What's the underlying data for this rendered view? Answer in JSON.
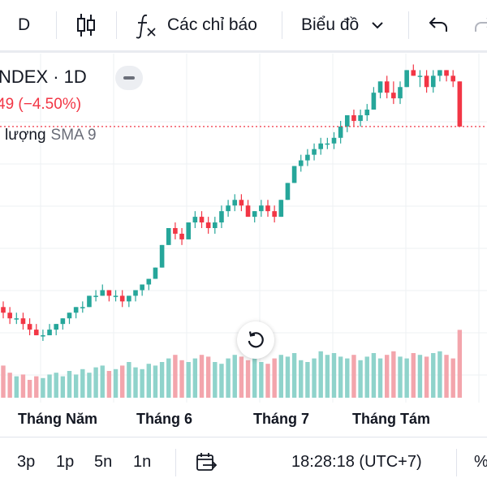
{
  "toolbar": {
    "interval": "D",
    "indicators_label": "Các chỉ báo",
    "chart_type_label": "Biểu đồ"
  },
  "legend": {
    "title": "NDEX · 1D",
    "change": "49 (−4.50%)",
    "volume_label": "lượng",
    "sma_label": "SMA 9"
  },
  "axis": {
    "months": [
      "Tháng Năm",
      "Tháng 6",
      "Tháng 7",
      "Tháng Tám"
    ]
  },
  "bottom": {
    "ranges": [
      "3p",
      "1p",
      "5n",
      "1n"
    ],
    "time": "18:28:18 (UTC+7)",
    "percent": "%"
  },
  "colors": {
    "up": "#26a69a",
    "down": "#f23645",
    "volume_up": "#8fd3cb",
    "volume_down": "#f3a5ac",
    "grid": "#eef0f3",
    "last_price_line": "#f23645"
  },
  "chart_data": {
    "type": "candlestick",
    "note_scale": "price axis not shown; values relative",
    "candles": [
      [
        46,
        47,
        44,
        45
      ],
      [
        45,
        46,
        43,
        44
      ],
      [
        44,
        45,
        43,
        44
      ],
      [
        44,
        45,
        42,
        43
      ],
      [
        43,
        44,
        41,
        42
      ],
      [
        42,
        43,
        41,
        41
      ],
      [
        41,
        42,
        40,
        41
      ],
      [
        41,
        43,
        41,
        42
      ],
      [
        42,
        43,
        41,
        43
      ],
      [
        43,
        44,
        42,
        44
      ],
      [
        44,
        45,
        43,
        45
      ],
      [
        45,
        46,
        44,
        46
      ],
      [
        46,
        47,
        45,
        46
      ],
      [
        46,
        48,
        46,
        48
      ],
      [
        48,
        49,
        47,
        48
      ],
      [
        48,
        50,
        48,
        49
      ],
      [
        49,
        49,
        47,
        48
      ],
      [
        48,
        49,
        47,
        48
      ],
      [
        48,
        49,
        46,
        47
      ],
      [
        47,
        48,
        46,
        48
      ],
      [
        48,
        49,
        47,
        49
      ],
      [
        49,
        50,
        48,
        50
      ],
      [
        50,
        51,
        49,
        51
      ],
      [
        51,
        53,
        51,
        53
      ],
      [
        53,
        57,
        53,
        57
      ],
      [
        57,
        60,
        57,
        60
      ],
      [
        60,
        61,
        58,
        59
      ],
      [
        59,
        60,
        57,
        58
      ],
      [
        58,
        61,
        58,
        61
      ],
      [
        61,
        63,
        60,
        62
      ],
      [
        62,
        63,
        60,
        61
      ],
      [
        61,
        62,
        59,
        60
      ],
      [
        60,
        62,
        59,
        61
      ],
      [
        61,
        64,
        60,
        63
      ],
      [
        63,
        65,
        62,
        64
      ],
      [
        64,
        66,
        63,
        65
      ],
      [
        65,
        66,
        63,
        64
      ],
      [
        64,
        65,
        62,
        62
      ],
      [
        62,
        63,
        61,
        63
      ],
      [
        63,
        65,
        62,
        64
      ],
      [
        64,
        65,
        62,
        63
      ],
      [
        63,
        64,
        61,
        62
      ],
      [
        62,
        65,
        62,
        65
      ],
      [
        65,
        68,
        65,
        68
      ],
      [
        68,
        71,
        68,
        71
      ],
      [
        71,
        73,
        70,
        72
      ],
      [
        72,
        74,
        71,
        73
      ],
      [
        73,
        75,
        72,
        74
      ],
      [
        74,
        76,
        73,
        75
      ],
      [
        75,
        76,
        74,
        75
      ],
      [
        75,
        77,
        74,
        76
      ],
      [
        76,
        79,
        75,
        78
      ],
      [
        78,
        80,
        77,
        80
      ],
      [
        80,
        81,
        78,
        79
      ],
      [
        79,
        81,
        78,
        80
      ],
      [
        80,
        82,
        79,
        81
      ],
      [
        81,
        85,
        81,
        84
      ],
      [
        84,
        86,
        83,
        86
      ],
      [
        86,
        87,
        83,
        84
      ],
      [
        84,
        86,
        82,
        83
      ],
      [
        83,
        86,
        82,
        85
      ],
      [
        85,
        88,
        85,
        88
      ],
      [
        88,
        89,
        87,
        87
      ],
      [
        87,
        88,
        85,
        87
      ],
      [
        87,
        88,
        84,
        85
      ],
      [
        85,
        88,
        84,
        87
      ],
      [
        87,
        88,
        86,
        88
      ],
      [
        88,
        88,
        86,
        87
      ],
      [
        87,
        88,
        85,
        86
      ],
      [
        86,
        86,
        78,
        78
      ]
    ],
    "volumes": [
      18,
      14,
      12,
      13,
      10,
      12,
      11,
      13,
      14,
      12,
      15,
      13,
      16,
      14,
      17,
      18,
      15,
      16,
      18,
      20,
      17,
      16,
      19,
      18,
      20,
      22,
      24,
      21,
      20,
      22,
      24,
      23,
      20,
      19,
      22,
      24,
      23,
      21,
      25,
      20,
      19,
      22,
      24,
      23,
      25,
      21,
      20,
      22,
      26,
      24,
      25,
      23,
      22,
      24,
      21,
      23,
      25,
      22,
      24,
      26,
      23,
      22,
      25,
      24,
      23,
      25,
      26,
      24,
      22,
      38
    ]
  }
}
